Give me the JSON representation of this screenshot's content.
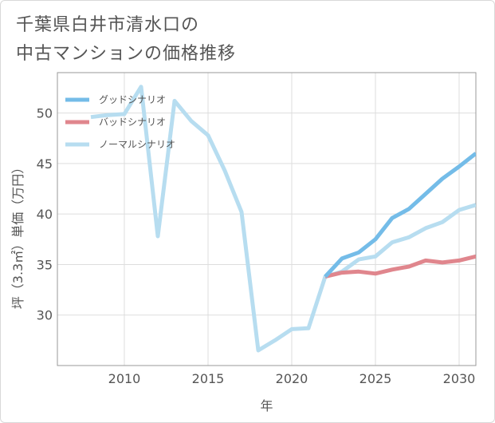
{
  "title_lines": [
    "千葉県白井市清水口の",
    "中古マンションの価格推移"
  ],
  "chart_data": {
    "type": "line",
    "title": "千葉県白井市清水口の中古マンションの価格推移",
    "xlabel": "年",
    "ylabel": "坪（3.3㎡）単価（万円）",
    "xlim": [
      2006,
      2031
    ],
    "ylim": [
      25,
      54
    ],
    "xticks": [
      2010,
      2015,
      2020,
      2025,
      2030
    ],
    "yticks": [
      30,
      35,
      40,
      45,
      50
    ],
    "legend_position": "top-left",
    "series": [
      {
        "name": "グッドシナリオ",
        "color": "#74bce8",
        "x": [
          2022,
          2023,
          2024,
          2025,
          2026,
          2027,
          2028,
          2029,
          2030,
          2031
        ],
        "y": [
          33.8,
          35.6,
          36.2,
          37.5,
          39.6,
          40.5,
          42.0,
          43.5,
          44.7,
          46.0
        ]
      },
      {
        "name": "バッドシナリオ",
        "color": "#e0868d",
        "x": [
          2022,
          2023,
          2024,
          2025,
          2026,
          2027,
          2028,
          2029,
          2030,
          2031
        ],
        "y": [
          33.8,
          34.2,
          34.3,
          34.1,
          34.5,
          34.8,
          35.4,
          35.2,
          35.4,
          35.8
        ]
      },
      {
        "name": "ノーマルシナリオ",
        "color": "#b7ddf0",
        "x": [
          2008,
          2009,
          2010,
          2011,
          2012,
          2013,
          2014,
          2015,
          2016,
          2017,
          2018,
          2019,
          2020,
          2021,
          2022,
          2023,
          2024,
          2025,
          2026,
          2027,
          2028,
          2029,
          2030,
          2031
        ],
        "y": [
          49.6,
          49.8,
          49.9,
          52.6,
          37.8,
          51.2,
          49.2,
          47.8,
          44.3,
          40.2,
          26.5,
          27.5,
          28.6,
          28.7,
          33.8,
          34.3,
          35.5,
          35.8,
          37.2,
          37.7,
          38.6,
          39.2,
          40.4,
          40.9
        ]
      }
    ]
  }
}
